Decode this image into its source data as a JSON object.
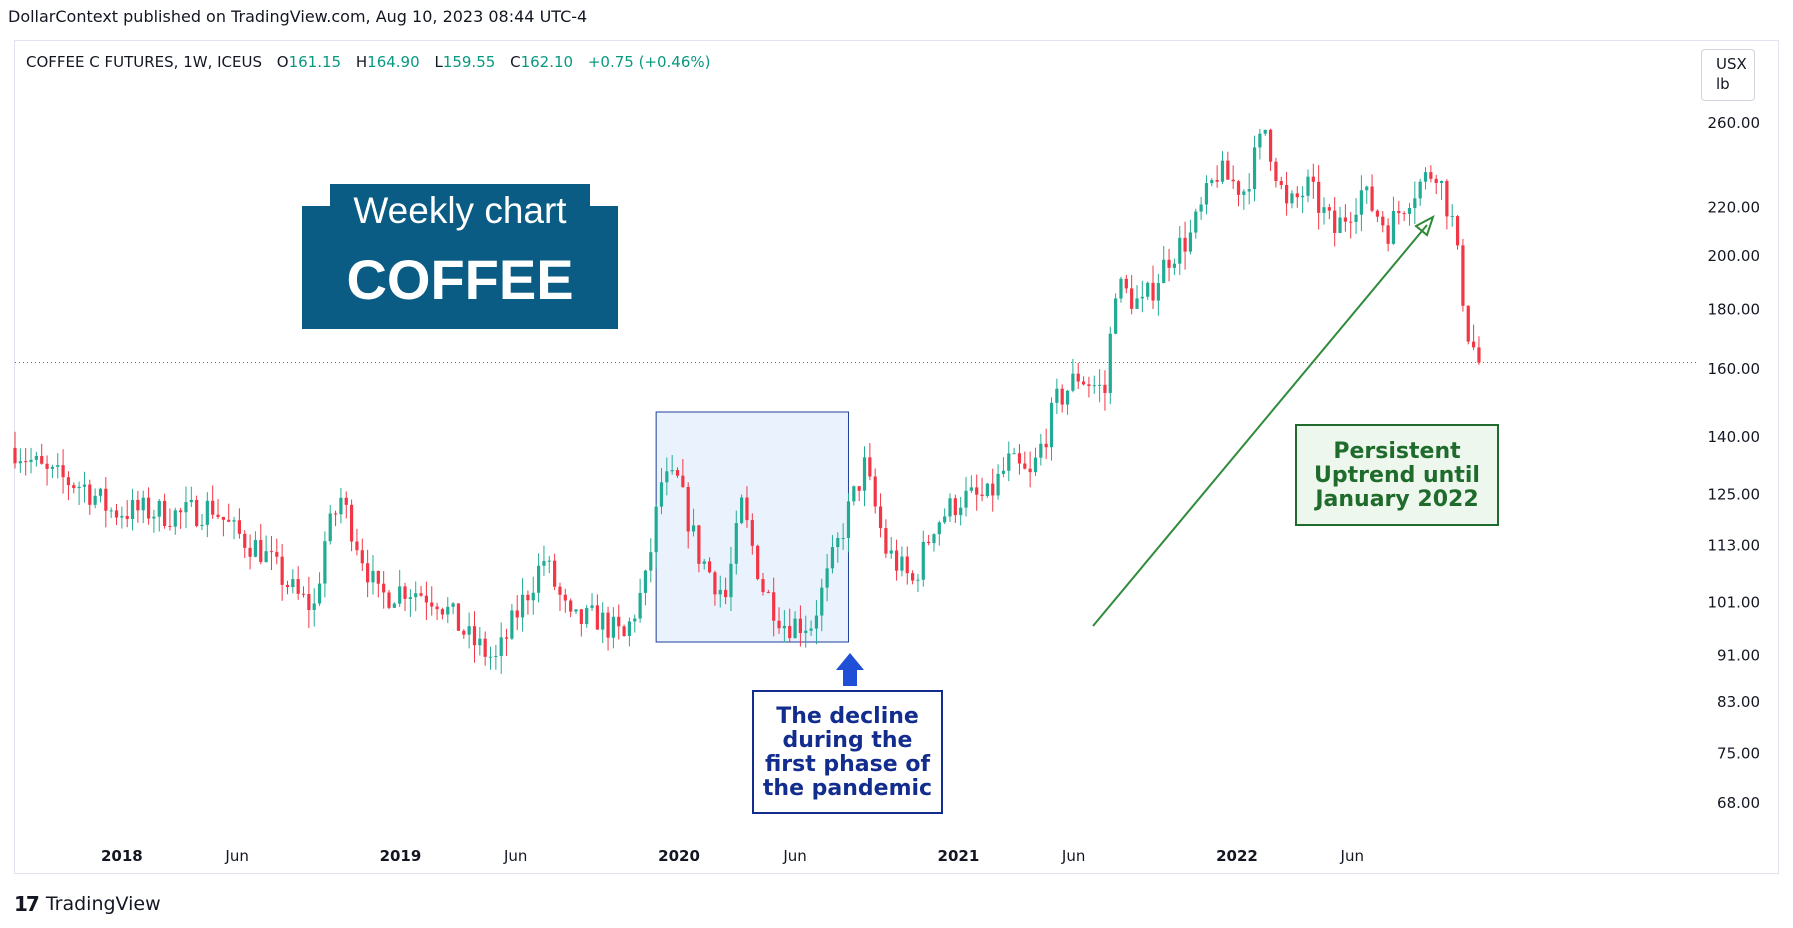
{
  "caption": "DollarContext published on TradingView.com, Aug 10, 2023 08:44 UTC-4",
  "symbol": {
    "name": "COFFEE C FUTURES, 1W, ICEUS",
    "open_label": "O",
    "open": "161.15",
    "high_label": "H",
    "high": "164.90",
    "low_label": "L",
    "low": "159.55",
    "close_label": "C",
    "close": "162.10",
    "change": "+0.75 (+0.46%)"
  },
  "unit": {
    "currency": "USX",
    "per": "lb"
  },
  "title_box": {
    "line1": "Weekly chart",
    "line2": "COFFEE"
  },
  "annotations": {
    "uptrend": "Persistent Uptrend until January 2022",
    "pandemic": "The decline during the first phase of the pandemic"
  },
  "brand": "TradingView",
  "colors": {
    "up": "#22ab94",
    "down": "#f23645",
    "title_bg": "#0a5c84",
    "arrow_green": "#2e8b3a",
    "arrow_blue": "#1e4fd6",
    "highlight": "#eaf3fd"
  },
  "chart_data": {
    "type": "candlestick",
    "interval": "1W",
    "y_scale": "log",
    "ylim": [
      62,
      272
    ],
    "y_ticks": [
      "260.00",
      "220.00",
      "200.00",
      "180.00",
      "160.00",
      "140.00",
      "125.00",
      "113.00",
      "101.00",
      "91.00",
      "83.00",
      "75.00",
      "68.00"
    ],
    "x_ticks": [
      {
        "label": "2018",
        "date": "2018-01-01",
        "year": true
      },
      {
        "label": "Jun",
        "date": "2018-06-01",
        "year": false
      },
      {
        "label": "2019",
        "date": "2019-01-01",
        "year": true
      },
      {
        "label": "Jun",
        "date": "2019-06-01",
        "year": false
      },
      {
        "label": "2020",
        "date": "2020-01-01",
        "year": true
      },
      {
        "label": "Jun",
        "date": "2020-06-01",
        "year": false
      },
      {
        "label": "2021",
        "date": "2021-01-01",
        "year": true
      },
      {
        "label": "Jun",
        "date": "2021-06-01",
        "year": false
      },
      {
        "label": "2022",
        "date": "2022-01-01",
        "year": true
      },
      {
        "label": "Jun",
        "date": "2022-06-01",
        "year": false
      }
    ],
    "x_range": [
      "2017-08-14",
      "2023-08-28"
    ],
    "last_price": 162.1,
    "close_path": [
      [
        "2017-08-14",
        137
      ],
      [
        "2017-09-25",
        130
      ],
      [
        "2017-11-13",
        127
      ],
      [
        "2017-12-18",
        121
      ],
      [
        "2018-02-05",
        121
      ],
      [
        "2018-03-19",
        120
      ],
      [
        "2018-04-30",
        122
      ],
      [
        "2018-05-28",
        116
      ],
      [
        "2018-07-02",
        112
      ],
      [
        "2018-08-20",
        102
      ],
      [
        "2018-09-10",
        100
      ],
      [
        "2018-09-24",
        114
      ],
      [
        "2018-10-15",
        124
      ],
      [
        "2018-11-05",
        114
      ],
      [
        "2018-12-03",
        102
      ],
      [
        "2019-01-07",
        104
      ],
      [
        "2019-02-18",
        102
      ],
      [
        "2019-04-01",
        94
      ],
      [
        "2019-05-06",
        90
      ],
      [
        "2019-06-03",
        99
      ],
      [
        "2019-07-08",
        110
      ],
      [
        "2019-08-12",
        97
      ],
      [
        "2019-09-16",
        98
      ],
      [
        "2019-10-21",
        94
      ],
      [
        "2019-11-18",
        105
      ],
      [
        "2019-12-09",
        128
      ],
      [
        "2019-12-30",
        128
      ],
      [
        "2020-01-27",
        111
      ],
      [
        "2020-03-02",
        102
      ],
      [
        "2020-03-23",
        122
      ],
      [
        "2020-04-20",
        104
      ],
      [
        "2020-05-18",
        97
      ],
      [
        "2020-06-22",
        97
      ],
      [
        "2020-07-13",
        106
      ],
      [
        "2020-08-10",
        121
      ],
      [
        "2020-08-31",
        132
      ],
      [
        "2020-09-28",
        112
      ],
      [
        "2020-11-02",
        105
      ],
      [
        "2020-11-30",
        118
      ],
      [
        "2021-01-04",
        124
      ],
      [
        "2021-02-08",
        124
      ],
      [
        "2021-03-08",
        133
      ],
      [
        "2021-04-05",
        129
      ],
      [
        "2021-05-10",
        150
      ],
      [
        "2021-06-07",
        158
      ],
      [
        "2021-07-12",
        153
      ],
      [
        "2021-07-26",
        189
      ],
      [
        "2021-08-30",
        181
      ],
      [
        "2021-10-04",
        200
      ],
      [
        "2021-11-01",
        208
      ],
      [
        "2021-12-06",
        236
      ],
      [
        "2022-01-10",
        228
      ],
      [
        "2022-02-07",
        257
      ],
      [
        "2022-03-07",
        219
      ],
      [
        "2022-04-04",
        229
      ],
      [
        "2022-05-09",
        210
      ],
      [
        "2022-06-13",
        227
      ],
      [
        "2022-07-18",
        211
      ],
      [
        "2022-08-15",
        226
      ],
      [
        "2022-09-19",
        238
      ],
      [
        "2022-10-10",
        214
      ],
      [
        "2022-10-31",
        172
      ],
      [
        "2022-11-14",
        162
      ]
    ]
  }
}
